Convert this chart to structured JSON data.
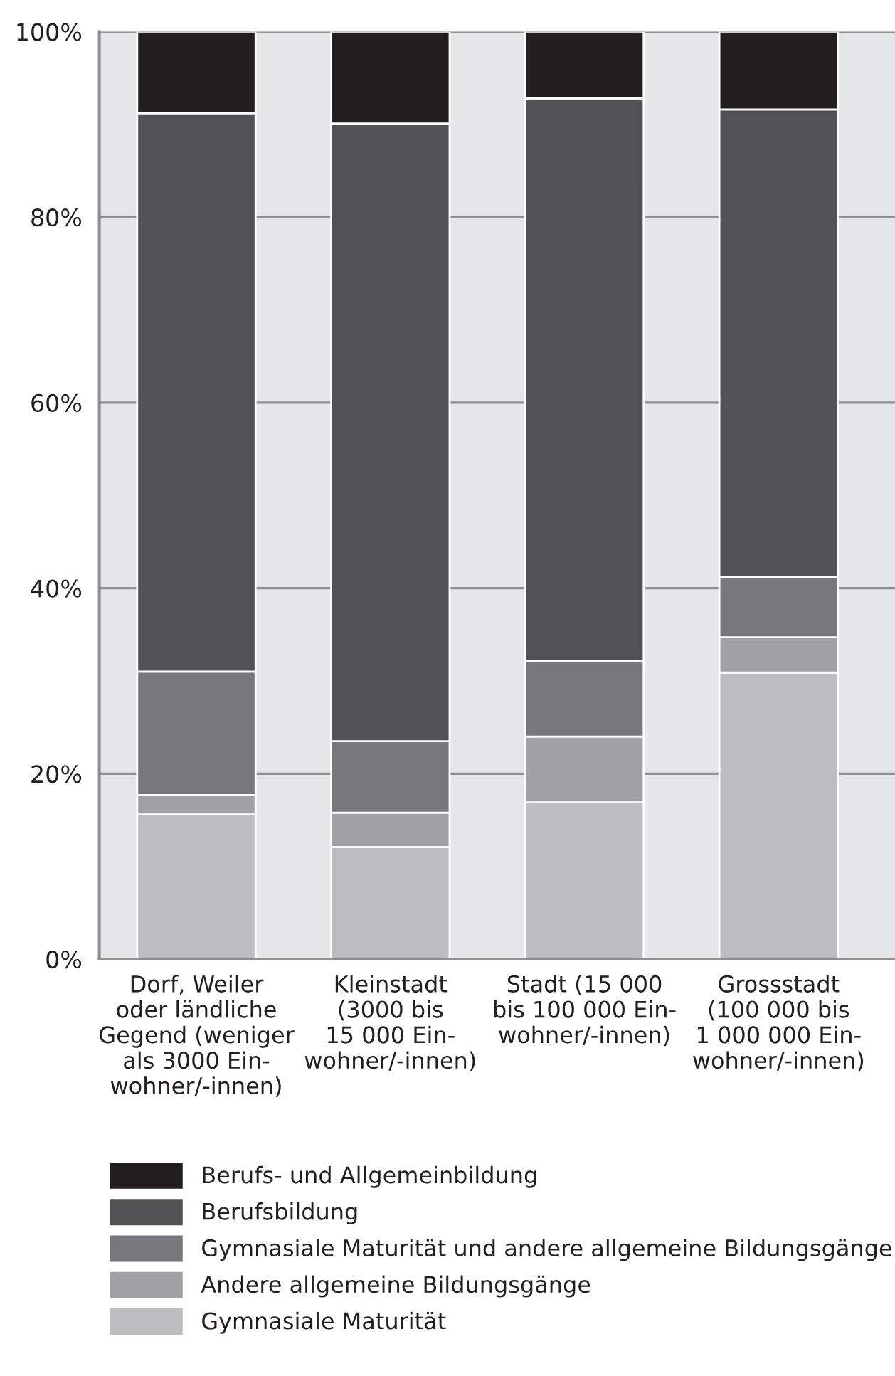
{
  "chart_data": {
    "type": "bar",
    "stacked": true,
    "categories": [
      "Dorf, Weiler\noder ländliche\nGegend (weniger\nals 3000 Ein-\nwohner/-innen)",
      "Kleinstadt\n(3000 bis\n15 000 Ein-\nwohner/-innen)",
      "Stadt (15 000\nbis 100 000 Ein-\nwohner/-innen)",
      "Grossstadt\n(100 000 bis\n1 000 000 Ein-\nwohner/-innen)"
    ],
    "series": [
      {
        "name": "Gymnasiale Maturität",
        "color": "#bcbdc1",
        "values": [
          15.6,
          12.1,
          16.9,
          30.9
        ]
      },
      {
        "name": "Andere allgemeine Bildungsgänge",
        "color": "#a0a1a5",
        "values": [
          2.1,
          3.7,
          7.1,
          3.8
        ]
      },
      {
        "name": "Gymnasiale Maturität und andere allgemeine Bildungsgänge",
        "color": "#77787c",
        "values": [
          13.3,
          7.7,
          8.2,
          6.5
        ]
      },
      {
        "name": "Berufsbildung",
        "color": "#525254",
        "values": [
          60.2,
          66.6,
          60.6,
          50.4
        ]
      },
      {
        "name": "Berufs- und Allgemeinbildung",
        "color": "#231f20",
        "values": [
          8.8,
          9.9,
          7.2,
          8.4
        ]
      }
    ],
    "ylim": [
      0,
      100
    ],
    "yticks": [
      {
        "value": 0,
        "label": "0%"
      },
      {
        "value": 20,
        "label": "20%"
      },
      {
        "value": 40,
        "label": "40%"
      },
      {
        "value": 60,
        "label": "60%"
      },
      {
        "value": 80,
        "label": "80%"
      },
      {
        "value": 100,
        "label": "100%"
      }
    ],
    "grid": "y",
    "legend": "bottom"
  }
}
